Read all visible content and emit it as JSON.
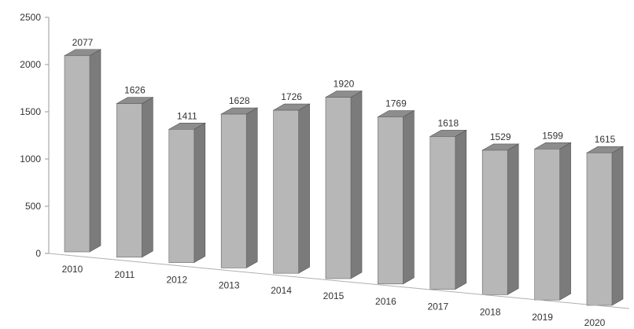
{
  "chart_data": {
    "type": "bar",
    "title": "",
    "xlabel": "",
    "ylabel": "",
    "categories": [
      "2010",
      "2011",
      "2012",
      "2013",
      "2014",
      "2015",
      "2016",
      "2017",
      "2018",
      "2019",
      "2020"
    ],
    "values": [
      2077,
      1626,
      1411,
      1628,
      1726,
      1920,
      1769,
      1618,
      1529,
      1599,
      1615
    ],
    "ylim": [
      0,
      2500
    ],
    "yticks": [
      0,
      500,
      1000,
      1500,
      2000,
      2500
    ],
    "legend": "none",
    "grid": false,
    "style": "3d perspective columns",
    "colors": {
      "front": "#b7b7b7",
      "side": "#7b7b7b",
      "top": "#8d8d8d"
    }
  }
}
